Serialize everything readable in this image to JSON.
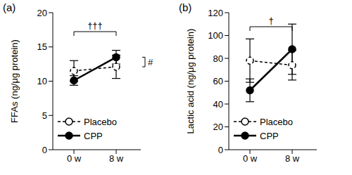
{
  "chart_data": [
    {
      "type": "line",
      "title": "(a)",
      "y_label": "FFAs (ng/μg protein)",
      "categories": [
        "0 w",
        "8 w"
      ],
      "ylim": [
        0,
        20
      ],
      "yticks": [
        0,
        5,
        10,
        15,
        20
      ],
      "legend": "lower left",
      "series": [
        {
          "name": "Placebo",
          "color": "#000000",
          "line_style": "dashed",
          "marker": "open_circle",
          "values": [
            11.5,
            12.1
          ],
          "errors": [
            1.5,
            1.7
          ]
        },
        {
          "name": "CPP",
          "color": "#000000",
          "line_style": "solid",
          "marker": "filled_circle",
          "values": [
            10.1,
            13.5
          ],
          "errors": [
            0.7,
            1.0
          ]
        }
      ],
      "annotations": [
        {
          "text": "†††",
          "compares": [
            "0 w",
            "8 w"
          ]
        },
        {
          "text": "#",
          "compares": [
            "Placebo",
            "CPP"
          ]
        }
      ]
    },
    {
      "type": "line",
      "title": "(b)",
      "y_label": "Lactic acid (ng/μg protein)",
      "categories": [
        "0 w",
        "8 w"
      ],
      "ylim": [
        0,
        120
      ],
      "yticks": [
        0,
        20,
        40,
        60,
        80,
        100,
        120
      ],
      "legend": "lower left",
      "series": [
        {
          "name": "Placebo",
          "color": "#000000",
          "line_style": "dashed",
          "marker": "open_circle",
          "values": [
            78,
            74
          ],
          "errors": [
            19,
            13
          ]
        },
        {
          "name": "CPP",
          "color": "#000000",
          "line_style": "solid",
          "marker": "filled_circle",
          "values": [
            52,
            88
          ],
          "errors": [
            10,
            22
          ]
        }
      ],
      "annotations": [
        {
          "text": "†",
          "compares": [
            "0 w",
            "8 w"
          ]
        }
      ]
    }
  ]
}
